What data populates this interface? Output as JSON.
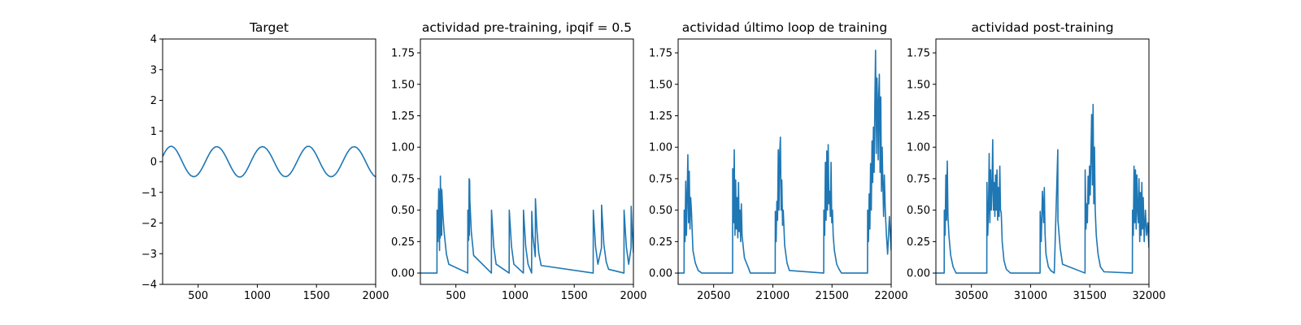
{
  "figure": {
    "background": "#ffffff",
    "line_color": "#1f77b4",
    "axis_color": "#000000"
  },
  "chart_data": [
    {
      "type": "line",
      "title": "Target",
      "xlabel": "",
      "ylabel": "",
      "xlim": [
        200,
        2000
      ],
      "ylim": [
        -4,
        4
      ],
      "xticks": [
        500,
        1000,
        1500,
        2000
      ],
      "yticks": [
        -4,
        -3,
        -2,
        -1,
        0,
        1,
        2,
        3,
        4
      ],
      "ytick_format": "int",
      "grid": false,
      "series": [
        {
          "x": [
            200,
            220,
            240,
            260,
            280,
            300,
            320,
            340,
            360,
            380,
            400,
            420,
            440,
            460,
            480,
            500,
            520,
            540,
            560,
            580,
            600,
            620,
            640,
            660,
            680,
            700,
            720,
            740,
            760,
            780,
            800,
            820,
            840,
            860,
            880,
            900,
            920,
            940,
            960,
            980,
            1000,
            1020,
            1040,
            1060,
            1080,
            1100,
            1120,
            1140,
            1160,
            1180,
            1200,
            1220,
            1240,
            1260,
            1280,
            1300,
            1320,
            1340,
            1360,
            1380,
            1400,
            1420,
            1440,
            1460,
            1480,
            1500,
            1520,
            1540,
            1560,
            1580,
            1600,
            1620,
            1640,
            1660,
            1680,
            1700,
            1720,
            1740,
            1760,
            1780,
            1800,
            1820,
            1840,
            1860,
            1880,
            1900,
            1920,
            1940,
            1960,
            1980,
            2000
          ],
          "y": [
            0.167,
            0.319,
            0.431,
            0.494,
            0.5,
            0.449,
            0.347,
            0.207,
            0.047,
            -0.115,
            -0.262,
            -0.38,
            -0.458,
            -0.491,
            -0.474,
            -0.41,
            -0.304,
            -0.166,
            -0.01,
            0.149,
            0.292,
            0.404,
            0.472,
            0.49,
            0.459,
            0.381,
            0.264,
            0.119,
            -0.04,
            -0.195,
            -0.332,
            -0.437,
            -0.496,
            -0.5,
            -0.449,
            -0.347,
            -0.208,
            -0.048,
            0.114,
            0.261,
            0.379,
            0.457,
            0.491,
            0.475,
            0.411,
            0.306,
            0.168,
            0.011,
            -0.147,
            -0.291,
            -0.403,
            -0.471,
            -0.49,
            -0.46,
            -0.382,
            -0.266,
            -0.12,
            0.038,
            0.194,
            0.331,
            0.436,
            0.496,
            0.5,
            0.45,
            0.349,
            0.209,
            0.05,
            -0.112,
            -0.259,
            -0.378,
            -0.457,
            -0.491,
            -0.475,
            -0.412,
            -0.307,
            -0.169,
            -0.013,
            0.146,
            0.29,
            0.402,
            0.471,
            0.49,
            0.46,
            0.383,
            0.267,
            0.122,
            -0.036,
            -0.192,
            -0.33,
            -0.436,
            -0.496
          ]
        }
      ]
    },
    {
      "type": "line",
      "title": "actividad pre-training, ipqif = 0.5",
      "xlabel": "",
      "ylabel": "",
      "xlim": [
        200,
        2000
      ],
      "ylim": [
        -0.09,
        1.86
      ],
      "xticks": [
        500,
        1000,
        1500,
        2000
      ],
      "yticks": [
        0.0,
        0.25,
        0.5,
        0.75,
        1.0,
        1.25,
        1.5,
        1.75
      ],
      "ytick_format": "2dp",
      "grid": false,
      "series": [
        {
          "x": [
            200,
            340,
            341,
            348,
            355,
            362,
            363,
            368,
            369,
            375,
            376,
            380,
            381,
            390,
            400,
            420,
            440,
            600,
            601,
            608,
            612,
            614,
            616,
            618,
            630,
            650,
            800,
            801,
            820,
            840,
            950,
            951,
            970,
            990,
            1070,
            1071,
            1090,
            1110,
            1140,
            1141,
            1150,
            1171,
            1172,
            1185,
            1200,
            1220,
            1660,
            1661,
            1680,
            1700,
            1730,
            1731,
            1750,
            1770,
            1790,
            1920,
            1921,
            1940,
            1960,
            1980,
            1981,
            1990,
            2000
          ],
          "y": [
            0,
            0,
            0.5,
            0.25,
            0.67,
            0.18,
            0.65,
            0.28,
            0.77,
            0.3,
            0.67,
            0.3,
            0.66,
            0.47,
            0.33,
            0.15,
            0.07,
            0,
            0.5,
            0.26,
            0.75,
            0.3,
            0.74,
            0.58,
            0.33,
            0.14,
            0,
            0.5,
            0.21,
            0.07,
            0,
            0.5,
            0.21,
            0.07,
            0,
            0.5,
            0.21,
            0.07,
            0,
            0.49,
            0.3,
            0.13,
            0.59,
            0.34,
            0.16,
            0.06,
            0,
            0.5,
            0.21,
            0.07,
            0.2,
            0.54,
            0.23,
            0.09,
            0.03,
            0,
            0.5,
            0.21,
            0.07,
            0.2,
            0.53,
            0.33,
            0.16
          ]
        }
      ]
    },
    {
      "type": "line",
      "title": "actividad último loop de training",
      "xlabel": "",
      "ylabel": "",
      "xlim": [
        20200,
        22000
      ],
      "ylim": [
        -0.09,
        1.86
      ],
      "xticks": [
        20500,
        21000,
        21500,
        22000
      ],
      "yticks": [
        0.0,
        0.25,
        0.5,
        0.75,
        1.0,
        1.25,
        1.5,
        1.75
      ],
      "ytick_format": "2dp",
      "grid": false,
      "series": [
        {
          "x": [
            20200,
            20250,
            20251,
            20258,
            20264,
            20270,
            20276,
            20282,
            20288,
            20294,
            20300,
            20306,
            20312,
            20318,
            20325,
            20345,
            20370,
            20400,
            20660,
            20661,
            20668,
            20674,
            20680,
            20686,
            20692,
            20698,
            20704,
            20710,
            20716,
            20722,
            20728,
            20734,
            20740,
            20760,
            20790,
            20810,
            21020,
            21021,
            21028,
            21034,
            21040,
            21046,
            21052,
            21058,
            21064,
            21070,
            21076,
            21082,
            21088,
            21100,
            21120,
            21140,
            21430,
            21431,
            21438,
            21444,
            21450,
            21456,
            21462,
            21468,
            21474,
            21480,
            21486,
            21492,
            21498,
            21504,
            21510,
            21520,
            21540,
            21560,
            21580,
            21800,
            21801,
            21808,
            21814,
            21820,
            21826,
            21832,
            21838,
            21844,
            21850,
            21856,
            21862,
            21868,
            21874,
            21880,
            21886,
            21890,
            21895,
            21900,
            21906,
            21912,
            21918,
            21924,
            21930,
            21936,
            21942,
            21950,
            21960,
            21970,
            21985,
            22000
          ],
          "y": [
            0,
            0,
            0.5,
            0.25,
            0.73,
            0.3,
            0.6,
            0.94,
            0.4,
            0.81,
            0.35,
            0.6,
            0.5,
            0.35,
            0.18,
            0.08,
            0.02,
            0,
            0,
            0.83,
            0.4,
            0.98,
            0.3,
            0.74,
            0.35,
            0.6,
            0.28,
            0.72,
            0.33,
            0.5,
            0.25,
            0.55,
            0.3,
            0.12,
            0.05,
            0,
            0,
            0.49,
            0.25,
            0.57,
            0.42,
            0.98,
            0.5,
            0.95,
            1.08,
            0.5,
            0.74,
            0.38,
            0.5,
            0.22,
            0.08,
            0.02,
            0,
            0.5,
            0.3,
            0.88,
            0.42,
            0.97,
            0.5,
            1.02,
            0.55,
            0.65,
            0.45,
            0.88,
            0.4,
            0.5,
            0.3,
            0.18,
            0.07,
            0.03,
            0,
            0,
            0.5,
            0.25,
            0.63,
            0.35,
            0.87,
            0.5,
            1.05,
            0.72,
            1.16,
            0.8,
            1.35,
            1.77,
            0.95,
            1.55,
            1.25,
            0.9,
            1.42,
            1.58,
            0.8,
            1.4,
            0.65,
            1.0,
            0.7,
            0.45,
            0.78,
            0.5,
            0.3,
            0.15,
            0.45,
            0.18
          ]
        }
      ]
    },
    {
      "type": "line",
      "title": "actividad post-training",
      "xlabel": "",
      "ylabel": "",
      "xlim": [
        30200,
        32000
      ],
      "ylim": [
        -0.09,
        1.86
      ],
      "xticks": [
        30500,
        31000,
        31500,
        32000
      ],
      "yticks": [
        0.0,
        0.25,
        0.5,
        0.75,
        1.0,
        1.25,
        1.5,
        1.75
      ],
      "ytick_format": "2dp",
      "grid": false,
      "series": [
        {
          "x": [
            30200,
            30270,
            30271,
            30278,
            30284,
            30290,
            30296,
            30302,
            30310,
            30325,
            30345,
            30370,
            30630,
            30631,
            30638,
            30644,
            30650,
            30656,
            30662,
            30668,
            30674,
            30680,
            30686,
            30692,
            30698,
            30704,
            30710,
            30716,
            30722,
            30728,
            30734,
            30740,
            30746,
            30752,
            30760,
            30775,
            30795,
            30830,
            31080,
            31081,
            31090,
            31100,
            31110,
            31116,
            31122,
            31130,
            31150,
            31170,
            31200,
            31230,
            31231,
            31250,
            31270,
            31460,
            31461,
            31468,
            31474,
            31480,
            31486,
            31492,
            31498,
            31504,
            31510,
            31516,
            31522,
            31528,
            31534,
            31540,
            31546,
            31555,
            31570,
            31590,
            31620,
            31860,
            31861,
            31868,
            31874,
            31880,
            31886,
            31892,
            31898,
            31904,
            31910,
            31916,
            31922,
            31928,
            31934,
            31940,
            31946,
            31952,
            31960,
            31970,
            31980,
            31990,
            32000
          ],
          "y": [
            0,
            0,
            0.5,
            0.3,
            0.78,
            0.42,
            0.89,
            0.45,
            0.3,
            0.14,
            0.05,
            0,
            0,
            0.72,
            0.3,
            0.5,
            0.95,
            0.4,
            0.82,
            0.5,
            0.68,
            1.06,
            0.5,
            0.72,
            0.45,
            0.78,
            0.5,
            0.82,
            0.42,
            0.68,
            0.45,
            0.85,
            0.5,
            0.48,
            0.25,
            0.1,
            0.03,
            0,
            0,
            0.49,
            0.25,
            0.65,
            0.4,
            0.68,
            0.32,
            0.15,
            0.05,
            0.02,
            0,
            0.98,
            0.42,
            0.2,
            0.07,
            0,
            0.82,
            0.35,
            0.55,
            0.4,
            0.77,
            0.55,
            0.85,
            0.62,
            0.95,
            1.26,
            0.7,
            1.34,
            0.55,
            1.0,
            0.5,
            0.3,
            0.15,
            0.05,
            0.01,
            0,
            0.5,
            0.3,
            0.85,
            0.4,
            0.82,
            0.35,
            0.78,
            0.5,
            0.4,
            0.75,
            0.25,
            0.64,
            0.3,
            0.72,
            0.35,
            0.6,
            0.25,
            0.5,
            0.3,
            0.4,
            0.2
          ]
        }
      ]
    }
  ]
}
